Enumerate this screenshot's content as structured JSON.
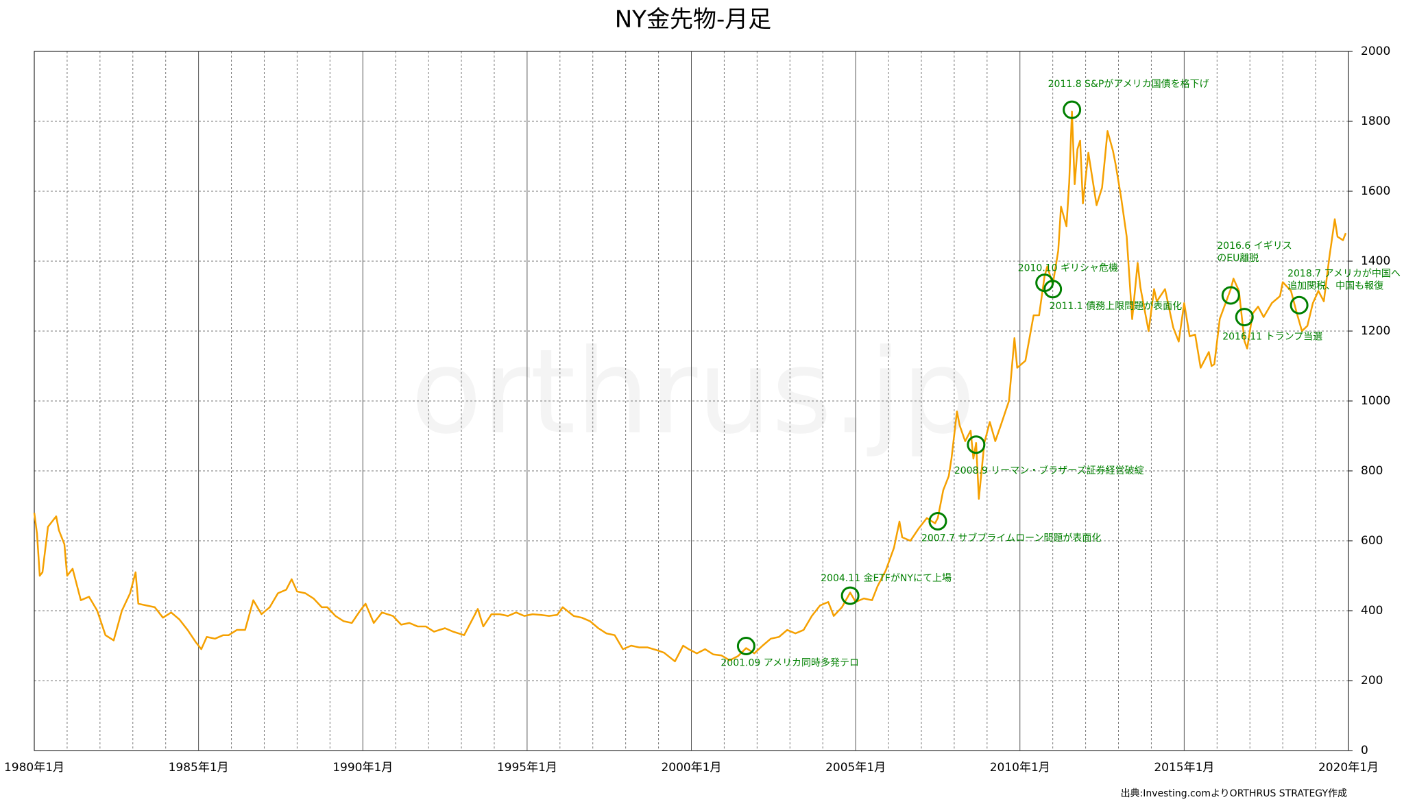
{
  "chart_data": {
    "type": "line",
    "title": "NY金先物-月足",
    "watermark": "orthrus.jp",
    "source": "出典:Investing.comよりORTHRUS STRATEGY作成",
    "xlim": [
      "1980-01",
      "2020-01"
    ],
    "ylim": [
      0,
      2000
    ],
    "yticks": [
      0,
      200,
      400,
      600,
      800,
      1000,
      1200,
      1400,
      1600,
      1800,
      2000
    ],
    "xticks": [
      {
        "value": "1980-01",
        "label": "1980年1月"
      },
      {
        "value": "1985-01",
        "label": "1985年1月"
      },
      {
        "value": "1990-01",
        "label": "1990年1月"
      },
      {
        "value": "1995-01",
        "label": "1995年1月"
      },
      {
        "value": "2000-01",
        "label": "2000年1月"
      },
      {
        "value": "2005-01",
        "label": "2005年1月"
      },
      {
        "value": "2010-01",
        "label": "2010年1月"
      },
      {
        "value": "2015-01",
        "label": "2015年1月"
      },
      {
        "value": "2020-01",
        "label": "2020年1月"
      }
    ],
    "xgrid": [
      "1981-01",
      "1982-01",
      "1983-01",
      "1984-01",
      "1986-01",
      "1987-01",
      "1988-01",
      "1989-01",
      "1991-01",
      "1992-01",
      "1993-01",
      "1994-01",
      "1996-01",
      "1997-01",
      "1998-01",
      "1999-01",
      "2001-01",
      "2002-01",
      "2003-01",
      "2004-01",
      "2006-01",
      "2007-01",
      "2008-01",
      "2009-01",
      "2011-01",
      "2012-01",
      "2013-01",
      "2014-01",
      "2016-01",
      "2017-01",
      "2018-01",
      "2019-01"
    ],
    "grid": true,
    "color": "#f5a000",
    "x": [
      "1980-01",
      "1980-02",
      "1980-03",
      "1980-04",
      "1980-06",
      "1980-09",
      "1980-10",
      "1980-12",
      "1981-01",
      "1981-03",
      "1981-06",
      "1981-09",
      "1981-12",
      "1982-03",
      "1982-06",
      "1982-09",
      "1982-12",
      "1983-02",
      "1983-03",
      "1983-06",
      "1983-09",
      "1983-12",
      "1984-03",
      "1984-06",
      "1984-09",
      "1984-12",
      "1985-02",
      "1985-04",
      "1985-07",
      "1985-10",
      "1985-12",
      "1986-03",
      "1986-06",
      "1986-09",
      "1986-12",
      "1987-03",
      "1987-06",
      "1987-09",
      "1987-11",
      "1988-01",
      "1988-04",
      "1988-07",
      "1988-10",
      "1988-12",
      "1989-03",
      "1989-06",
      "1989-09",
      "1989-12",
      "1990-02",
      "1990-05",
      "1990-08",
      "1990-12",
      "1991-03",
      "1991-06",
      "1991-09",
      "1991-12",
      "1992-03",
      "1992-07",
      "1992-10",
      "1993-02",
      "1993-05",
      "1993-07",
      "1993-09",
      "1993-12",
      "1994-03",
      "1994-06",
      "1994-09",
      "1994-12",
      "1995-03",
      "1995-06",
      "1995-09",
      "1995-12",
      "1996-02",
      "1996-06",
      "1996-09",
      "1996-12",
      "1997-03",
      "1997-06",
      "1997-09",
      "1997-12",
      "1998-03",
      "1998-06",
      "1998-09",
      "1998-12",
      "1999-03",
      "1999-07",
      "1999-10",
      "1999-12",
      "2000-03",
      "2000-06",
      "2000-09",
      "2000-12",
      "2001-03",
      "2001-06",
      "2001-09",
      "2001-12",
      "2002-03",
      "2002-06",
      "2002-09",
      "2002-12",
      "2003-03",
      "2003-06",
      "2003-09",
      "2003-12",
      "2004-03",
      "2004-05",
      "2004-08",
      "2004-11",
      "2005-01",
      "2005-04",
      "2005-07",
      "2005-09",
      "2005-12",
      "2006-03",
      "2006-05",
      "2006-06",
      "2006-09",
      "2006-12",
      "2007-03",
      "2007-06",
      "2007-07",
      "2007-09",
      "2007-11",
      "2007-12",
      "2008-02",
      "2008-03",
      "2008-05",
      "2008-07",
      "2008-08",
      "2008-09",
      "2008-10",
      "2008-12",
      "2009-02",
      "2009-04",
      "2009-06",
      "2009-09",
      "2009-11",
      "2009-12",
      "2010-03",
      "2010-06",
      "2010-08",
      "2010-10",
      "2010-11",
      "2011-01",
      "2011-03",
      "2011-04",
      "2011-06",
      "2011-07",
      "2011-08",
      "2011-09",
      "2011-10",
      "2011-11",
      "2011-12",
      "2012-02",
      "2012-05",
      "2012-07",
      "2012-09",
      "2012-11",
      "2012-12",
      "2013-02",
      "2013-04",
      "2013-06",
      "2013-08",
      "2013-09",
      "2013-12",
      "2014-02",
      "2014-03",
      "2014-06",
      "2014-09",
      "2014-11",
      "2015-01",
      "2015-03",
      "2015-05",
      "2015-07",
      "2015-10",
      "2015-11",
      "2015-12",
      "2016-02",
      "2016-06",
      "2016-07",
      "2016-09",
      "2016-11",
      "2016-12",
      "2017-02",
      "2017-04",
      "2017-06",
      "2017-09",
      "2017-12",
      "2018-01",
      "2018-04",
      "2018-06",
      "2018-08",
      "2018-10",
      "2018-12",
      "2019-02",
      "2019-04",
      "2019-06",
      "2019-08",
      "2019-09",
      "2019-11",
      "2019-12"
    ],
    "values": [
      680,
      620,
      500,
      510,
      640,
      670,
      630,
      590,
      500,
      520,
      430,
      440,
      400,
      330,
      315,
      400,
      450,
      510,
      420,
      415,
      410,
      380,
      395,
      375,
      345,
      310,
      290,
      325,
      320,
      330,
      330,
      345,
      345,
      430,
      390,
      410,
      450,
      460,
      490,
      455,
      450,
      435,
      410,
      410,
      385,
      370,
      365,
      400,
      420,
      365,
      395,
      385,
      360,
      365,
      355,
      355,
      340,
      350,
      340,
      330,
      375,
      405,
      355,
      390,
      390,
      385,
      395,
      385,
      390,
      388,
      385,
      388,
      410,
      385,
      380,
      370,
      350,
      335,
      330,
      290,
      300,
      295,
      295,
      288,
      280,
      255,
      300,
      290,
      278,
      290,
      275,
      272,
      258,
      270,
      293,
      278,
      300,
      320,
      325,
      345,
      335,
      345,
      385,
      415,
      425,
      385,
      410,
      452,
      425,
      435,
      430,
      470,
      515,
      580,
      655,
      610,
      600,
      635,
      665,
      650,
      665,
      745,
      785,
      835,
      970,
      930,
      885,
      915,
      835,
      880,
      720,
      880,
      940,
      885,
      930,
      1000,
      1180,
      1095,
      1115,
      1245,
      1245,
      1357,
      1385,
      1333,
      1430,
      1556,
      1500,
      1625,
      1828,
      1620,
      1720,
      1745,
      1565,
      1710,
      1560,
      1610,
      1772,
      1715,
      1675,
      1580,
      1470,
      1234,
      1395,
      1325,
      1200,
      1320,
      1285,
      1320,
      1210,
      1170,
      1280,
      1185,
      1190,
      1095,
      1140,
      1100,
      1105,
      1235,
      1320,
      1350,
      1315,
      1172,
      1150,
      1250,
      1270,
      1240,
      1280,
      1300,
      1340,
      1315,
      1255,
      1200,
      1215,
      1280,
      1315,
      1285,
      1410,
      1520,
      1470,
      1460,
      1480
    ],
    "annotations": [
      {
        "x": "2001-09",
        "y": 299,
        "lines": [
          "2001.09 アメリカ同時多発テロ"
        ]
      },
      {
        "x": "2004-11",
        "y": 443,
        "lines": [
          "2004.11 金ETFがNYにて上場"
        ]
      },
      {
        "x": "2007-07",
        "y": 656,
        "lines": [
          "2007.7 サブプライムローン問題が表面化"
        ]
      },
      {
        "x": "2008-09",
        "y": 875,
        "lines": [
          "2008.9 リーマン・ブラザーズ証券経営破綻"
        ]
      },
      {
        "x": "2010-10",
        "y": 1338,
        "lines": [
          "2010.10 ギリシャ危機"
        ]
      },
      {
        "x": "2011-01",
        "y": 1320,
        "lines": [
          "2011.1 債務上限問題が表面化"
        ]
      },
      {
        "x": "2011-08",
        "y": 1833,
        "lines": [
          "2011.8 S&Pがアメリカ国債を格下げ"
        ]
      },
      {
        "x": "2016-06",
        "y": 1302,
        "lines": [
          "2016.6 イギリス",
          "のEU離脱"
        ]
      },
      {
        "x": "2016-11",
        "y": 1240,
        "lines": [
          "2016.11 トランプ当選"
        ]
      },
      {
        "x": "2018-07",
        "y": 1274,
        "lines": [
          "2018.7 アメリカが中国へ",
          "追加関税、中国も報復"
        ]
      }
    ]
  }
}
